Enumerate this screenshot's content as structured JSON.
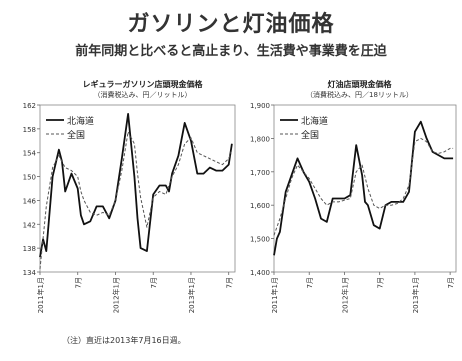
{
  "title": "ガソリンと灯油価格",
  "subtitle": "前年同期と比べると高止まり、生活費や事業費を圧迫",
  "note": "（注）直近は2013年7月16日週。",
  "chart_data": [
    {
      "type": "line",
      "title": "レギュラーガソリン店頭現金価格",
      "unit": "（消費税込み、円／リットル）",
      "ylim": [
        134,
        162
      ],
      "yticks": [
        134,
        138,
        142,
        146,
        150,
        154,
        158,
        162
      ],
      "ytick_labels": [
        "134",
        "138",
        "142",
        "146",
        "150",
        "154",
        "158",
        "162"
      ],
      "xlim": [
        0,
        31
      ],
      "xticks": [
        0,
        6,
        12,
        18,
        24,
        30
      ],
      "xtick_labels": [
        "2011年1月",
        "7月",
        "2012年1月",
        "7月",
        "2013年1月",
        "7月"
      ],
      "legend_position": "top-left",
      "series": [
        {
          "name": "北海道",
          "style": "solid",
          "x": [
            0,
            0.5,
            1,
            2,
            3,
            3.5,
            4,
            5,
            6,
            6.5,
            7,
            8,
            9,
            10,
            11,
            12,
            13,
            14,
            15,
            15.5,
            16,
            17,
            18,
            19,
            20,
            20.5,
            21,
            22,
            23,
            24,
            25,
            26,
            27,
            28,
            29,
            30,
            30.5
          ],
          "y": [
            136.5,
            139.5,
            137.5,
            150,
            154.5,
            152.5,
            147.5,
            150.5,
            148,
            143.5,
            142,
            142.5,
            145,
            145,
            143,
            146,
            153,
            160.5,
            150,
            143,
            138,
            137.5,
            147,
            148.5,
            148.5,
            147.5,
            150.5,
            153.5,
            159,
            156,
            150.5,
            150.5,
            151.5,
            151,
            151,
            152,
            155.5
          ]
        },
        {
          "name": "全国",
          "style": "dashed",
          "x": [
            0,
            1,
            2,
            3,
            3.5,
            4,
            5,
            6,
            6.5,
            7,
            8,
            9,
            10,
            11,
            12,
            13,
            14,
            15,
            15.5,
            16,
            17,
            18,
            19,
            20,
            21,
            22,
            23,
            24,
            25,
            26,
            27,
            28,
            29,
            30,
            30.5
          ],
          "y": [
            134.5,
            145,
            151.5,
            153.5,
            152.5,
            151.5,
            151,
            150,
            147.5,
            146,
            144,
            143.5,
            144,
            143.5,
            146,
            151,
            157.5,
            155.5,
            150.5,
            146.5,
            141.5,
            146.5,
            147.5,
            147,
            150,
            152,
            155.5,
            156.5,
            154,
            153.5,
            153,
            152.5,
            152,
            153,
            154.5
          ]
        }
      ]
    },
    {
      "type": "line",
      "title": "灯油店頭現金価格",
      "unit": "（消費税込み、円／18リットル）",
      "ylim": [
        1400,
        1900
      ],
      "yticks": [
        1400,
        1500,
        1600,
        1700,
        1800,
        1900
      ],
      "ytick_labels": [
        "1,400",
        "1,500",
        "1,600",
        "1,700",
        "1,800",
        "1,900"
      ],
      "xlim": [
        0,
        31
      ],
      "xticks": [
        0,
        6,
        12,
        18,
        24,
        30
      ],
      "xtick_labels": [
        "2011年1月",
        "7月",
        "2012年1月",
        "7月",
        "2013年1月",
        "7月"
      ],
      "legend_position": "top-left",
      "series": [
        {
          "name": "北海道",
          "style": "solid",
          "x": [
            0,
            0.5,
            1,
            2,
            3,
            4,
            5,
            6,
            7,
            8,
            9,
            10,
            11,
            12,
            13,
            14,
            15,
            15.5,
            16,
            17,
            18,
            19,
            20,
            21,
            22,
            23,
            24,
            25,
            26,
            27,
            28,
            29,
            30,
            30.5
          ],
          "y": [
            1450,
            1500,
            1520,
            1640,
            1690,
            1740,
            1700,
            1670,
            1620,
            1560,
            1550,
            1620,
            1620,
            1620,
            1630,
            1780,
            1690,
            1610,
            1600,
            1540,
            1530,
            1600,
            1610,
            1610,
            1610,
            1640,
            1820,
            1850,
            1800,
            1760,
            1750,
            1740,
            1740,
            1740
          ]
        },
        {
          "name": "全国",
          "style": "dashed",
          "x": [
            0,
            1,
            2,
            3,
            4,
            5,
            6,
            7,
            8,
            9,
            10,
            11,
            12,
            13,
            14,
            15,
            16,
            17,
            18,
            19,
            20,
            21,
            22,
            23,
            24,
            25,
            26,
            27,
            28,
            29,
            30,
            30.5
          ],
          "y": [
            1510,
            1560,
            1620,
            1680,
            1720,
            1700,
            1680,
            1650,
            1620,
            1600,
            1610,
            1610,
            1615,
            1620,
            1700,
            1720,
            1650,
            1600,
            1590,
            1600,
            1600,
            1605,
            1620,
            1660,
            1790,
            1800,
            1790,
            1760,
            1755,
            1760,
            1770,
            1770
          ]
        }
      ]
    }
  ]
}
